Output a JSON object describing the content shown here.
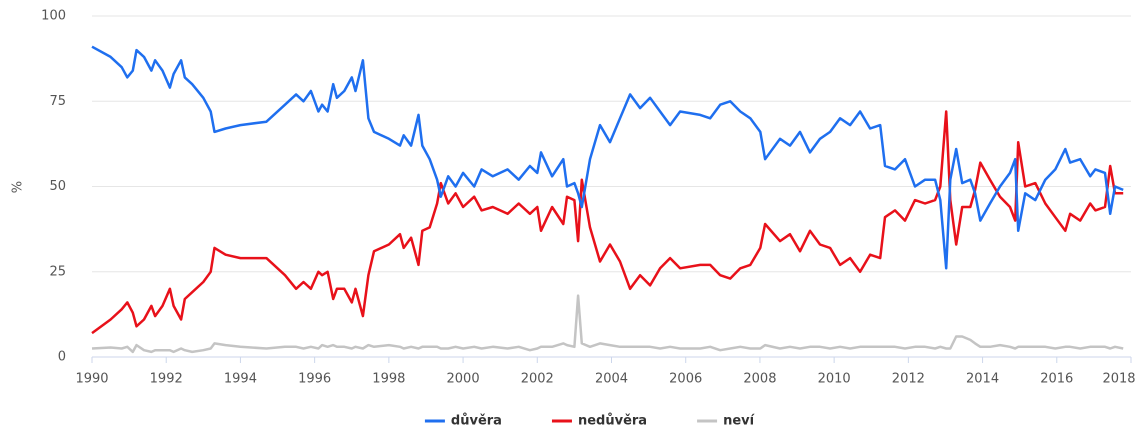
{
  "chart_data": {
    "type": "line",
    "y_label": "%",
    "x": [
      1990.0,
      1990.5,
      1990.8,
      1990.95,
      1991.1,
      1991.2,
      1991.4,
      1991.6,
      1991.7,
      1991.9,
      1992.1,
      1992.2,
      1992.4,
      1992.5,
      1992.7,
      1993.0,
      1993.2,
      1993.3,
      1993.6,
      1994.0,
      1994.7,
      1995.2,
      1995.5,
      1995.7,
      1995.9,
      1996.1,
      1996.2,
      1996.35,
      1996.5,
      1996.6,
      1996.8,
      1997.0,
      1997.1,
      1997.3,
      1997.45,
      1997.6,
      1998.0,
      1998.3,
      1998.4,
      1998.6,
      1998.8,
      1998.9,
      1999.1,
      1999.3,
      1999.4,
      1999.6,
      1999.8,
      2000.0,
      2000.3,
      2000.5,
      2000.8,
      2001.2,
      2001.5,
      2001.8,
      2002.0,
      2002.1,
      2002.4,
      2002.7,
      2002.8,
      2003.0,
      2003.1,
      2003.2,
      2003.42,
      2003.69,
      2003.96,
      2004.23,
      2004.5,
      2004.77,
      2005.04,
      2005.31,
      2005.58,
      2005.85,
      2006.39,
      2006.66,
      2006.93,
      2007.2,
      2007.47,
      2007.74,
      2008.01,
      2008.14,
      2008.54,
      2008.81,
      2009.08,
      2009.35,
      2009.62,
      2009.89,
      2010.16,
      2010.43,
      2010.7,
      2010.97,
      2011.24,
      2011.37,
      2011.64,
      2011.91,
      2012.18,
      2012.45,
      2012.72,
      2012.86,
      2013.02,
      2013.13,
      2013.29,
      2013.45,
      2013.67,
      2013.8,
      2013.94,
      2014.2,
      2014.47,
      2014.74,
      2014.88,
      2014.96,
      2015.15,
      2015.42,
      2015.69,
      2015.96,
      2016.23,
      2016.36,
      2016.63,
      2016.9,
      2017.04,
      2017.3,
      2017.44,
      2017.57,
      2017.79
    ],
    "series": [
      {
        "name": "důvěra",
        "color": "#1f6fef",
        "values": [
          91,
          88,
          85,
          82,
          84,
          90,
          88,
          84,
          87,
          84,
          79,
          83,
          87,
          82,
          80,
          76,
          72,
          66,
          67,
          68,
          69,
          74,
          77,
          75,
          78,
          72,
          74,
          72,
          80,
          76,
          78,
          82,
          78,
          87,
          70,
          66,
          64,
          62,
          65,
          62,
          71,
          62,
          58,
          52,
          47,
          53,
          50,
          54,
          50,
          55,
          53,
          55,
          52,
          56,
          54,
          60,
          53,
          58,
          50,
          51,
          48,
          44,
          58,
          68,
          63,
          70,
          77,
          73,
          76,
          72,
          68,
          72,
          71,
          70,
          74,
          75,
          72,
          70,
          66,
          58,
          64,
          62,
          66,
          60,
          64,
          66,
          70,
          68,
          72,
          67,
          68,
          56,
          55,
          58,
          50,
          52,
          52,
          46,
          26,
          52,
          61,
          51,
          52,
          48,
          40,
          45,
          50,
          54,
          58,
          37,
          48,
          46,
          52,
          55,
          61,
          57,
          58,
          53,
          55,
          54,
          42,
          50,
          49
        ]
      },
      {
        "name": "nedůvěra",
        "color": "#e8111a",
        "values": [
          7,
          11,
          14,
          16,
          13,
          9,
          11,
          15,
          12,
          15,
          20,
          15,
          11,
          17,
          19,
          22,
          25,
          32,
          30,
          29,
          29,
          24,
          20,
          22,
          20,
          25,
          24,
          25,
          17,
          20,
          20,
          16,
          20,
          12,
          24,
          31,
          33,
          36,
          32,
          35,
          27,
          37,
          38,
          45,
          51,
          45,
          48,
          44,
          47,
          43,
          44,
          42,
          45,
          42,
          44,
          37,
          44,
          39,
          47,
          46,
          34,
          52,
          38,
          28,
          33,
          28,
          20,
          24,
          21,
          26,
          29,
          26,
          27,
          27,
          24,
          23,
          26,
          27,
          32,
          39,
          34,
          36,
          31,
          37,
          33,
          32,
          27,
          29,
          25,
          30,
          29,
          41,
          43,
          40,
          46,
          45,
          46,
          50,
          72,
          46,
          33,
          44,
          44,
          49,
          57,
          52,
          47,
          44,
          40,
          63,
          50,
          51,
          45,
          41,
          37,
          42,
          40,
          45,
          43,
          44,
          56,
          48,
          48
        ]
      },
      {
        "name": "neví",
        "color": "#c4c4c4",
        "values": [
          2.5,
          2.8,
          2.5,
          3,
          1.5,
          3.5,
          2,
          1.5,
          2,
          2,
          2,
          1.5,
          2.5,
          2,
          1.5,
          2,
          2.5,
          4,
          3.5,
          3,
          2.5,
          3,
          3,
          2.5,
          3,
          2.5,
          3.5,
          3,
          3.5,
          3,
          3,
          2.5,
          3,
          2.5,
          3.5,
          3,
          3.5,
          3,
          2.5,
          3,
          2.5,
          3,
          3,
          3,
          2.5,
          2.5,
          3,
          2.5,
          3,
          2.5,
          3,
          2.5,
          3,
          2,
          2.5,
          3,
          3,
          4,
          3.5,
          3,
          18,
          4,
          3,
          4,
          3.5,
          3,
          3,
          3,
          3,
          2.5,
          3,
          2.5,
          2.5,
          3,
          2,
          2.5,
          3,
          2.5,
          2.5,
          3.5,
          2.5,
          3,
          2.5,
          3,
          3,
          2.5,
          3,
          2.5,
          3,
          3,
          3,
          3,
          3,
          2.5,
          3,
          3,
          2.5,
          3,
          2.5,
          2.5,
          6,
          6,
          5,
          4,
          3,
          3,
          3.5,
          3,
          2.5,
          3,
          3,
          3,
          3,
          2.5,
          3,
          3,
          2.5,
          3,
          3,
          3,
          2.5,
          3,
          2.5
        ]
      }
    ],
    "xlim": [
      1990,
      2018
    ],
    "xticks": [
      1990,
      1992,
      1994,
      1996,
      1998,
      2000,
      2002,
      2004,
      2006,
      2008,
      2010,
      2012,
      2014,
      2016,
      2018
    ],
    "ylim": [
      0,
      100
    ],
    "yticks": [
      0,
      25,
      50,
      75,
      100
    ],
    "grid": true,
    "legend": "bottom"
  }
}
